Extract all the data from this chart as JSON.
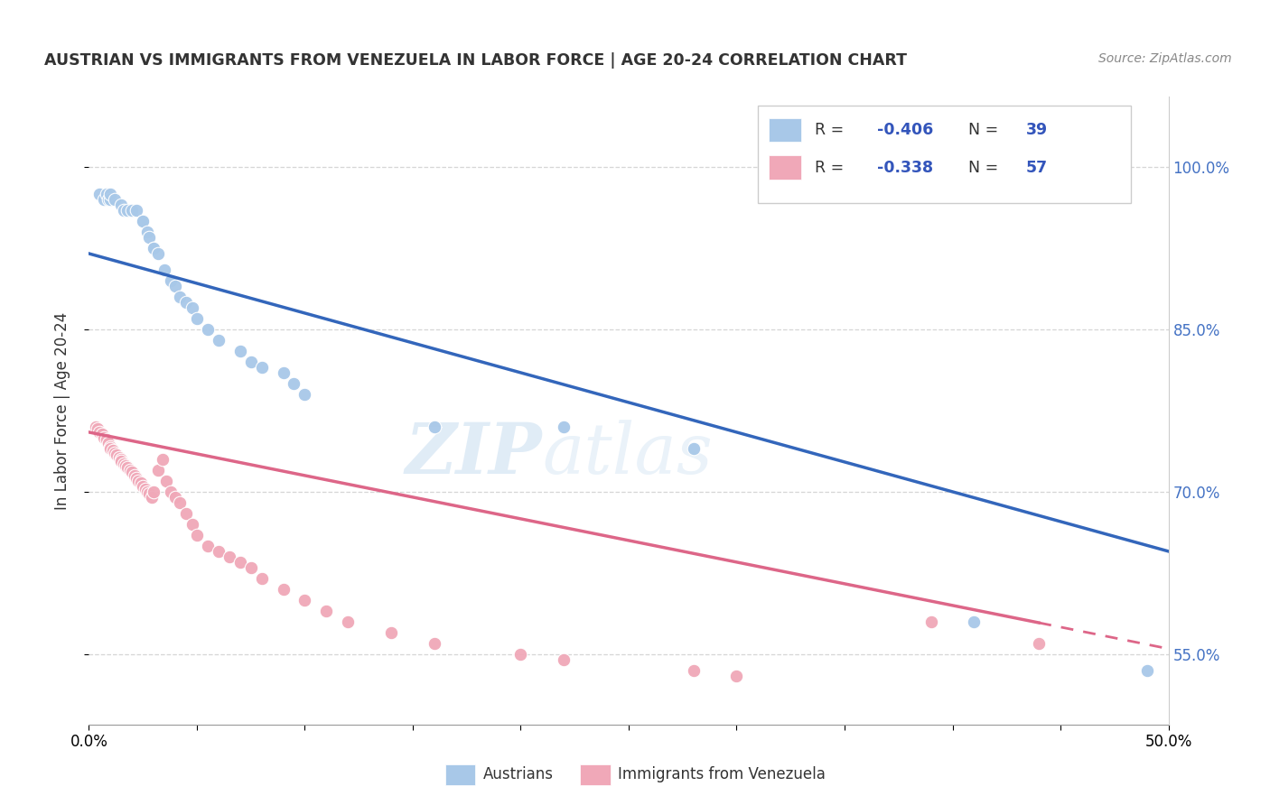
{
  "title": "AUSTRIAN VS IMMIGRANTS FROM VENEZUELA IN LABOR FORCE | AGE 20-24 CORRELATION CHART",
  "source": "Source: ZipAtlas.com",
  "ylabel": "In Labor Force | Age 20-24",
  "yticks": [
    0.55,
    0.7,
    0.85,
    1.0
  ],
  "xmin": 0.0,
  "xmax": 0.5,
  "ymin": 0.485,
  "ymax": 1.065,
  "legend_blue_r_val": "-0.406",
  "legend_blue_n_val": "39",
  "legend_pink_r_val": "-0.338",
  "legend_pink_n_val": "57",
  "blue_color": "#a8c8e8",
  "pink_color": "#f0a8b8",
  "blue_line_color": "#3366bb",
  "pink_line_color": "#dd6688",
  "watermark_text": "ZIP",
  "watermark_text2": "atlas",
  "blue_scatter_x": [
    0.005,
    0.007,
    0.008,
    0.009,
    0.01,
    0.01,
    0.012,
    0.015,
    0.016,
    0.018,
    0.02,
    0.022,
    0.025,
    0.025,
    0.027,
    0.028,
    0.03,
    0.03,
    0.032,
    0.035,
    0.038,
    0.04,
    0.042,
    0.045,
    0.048,
    0.05,
    0.055,
    0.06,
    0.07,
    0.075,
    0.08,
    0.09,
    0.095,
    0.1,
    0.16,
    0.22,
    0.28,
    0.41,
    0.49
  ],
  "blue_scatter_y": [
    0.975,
    0.97,
    0.975,
    0.97,
    0.97,
    0.975,
    0.97,
    0.965,
    0.96,
    0.96,
    0.96,
    0.96,
    0.95,
    0.95,
    0.94,
    0.935,
    0.925,
    0.925,
    0.92,
    0.905,
    0.895,
    0.89,
    0.88,
    0.875,
    0.87,
    0.86,
    0.85,
    0.84,
    0.83,
    0.82,
    0.815,
    0.81,
    0.8,
    0.79,
    0.76,
    0.76,
    0.74,
    0.58,
    0.535
  ],
  "pink_scatter_x": [
    0.003,
    0.004,
    0.005,
    0.006,
    0.007,
    0.008,
    0.009,
    0.01,
    0.01,
    0.011,
    0.012,
    0.013,
    0.014,
    0.015,
    0.015,
    0.016,
    0.017,
    0.018,
    0.019,
    0.02,
    0.021,
    0.022,
    0.023,
    0.024,
    0.025,
    0.026,
    0.027,
    0.028,
    0.029,
    0.03,
    0.032,
    0.034,
    0.036,
    0.038,
    0.04,
    0.042,
    0.045,
    0.048,
    0.05,
    0.055,
    0.06,
    0.065,
    0.07,
    0.075,
    0.08,
    0.09,
    0.1,
    0.11,
    0.12,
    0.14,
    0.16,
    0.2,
    0.22,
    0.28,
    0.3,
    0.39,
    0.44
  ],
  "pink_scatter_y": [
    0.76,
    0.758,
    0.755,
    0.753,
    0.75,
    0.748,
    0.745,
    0.742,
    0.74,
    0.738,
    0.736,
    0.734,
    0.732,
    0.73,
    0.728,
    0.726,
    0.724,
    0.722,
    0.72,
    0.718,
    0.715,
    0.712,
    0.71,
    0.708,
    0.705,
    0.702,
    0.7,
    0.698,
    0.695,
    0.7,
    0.72,
    0.73,
    0.71,
    0.7,
    0.695,
    0.69,
    0.68,
    0.67,
    0.66,
    0.65,
    0.645,
    0.64,
    0.635,
    0.63,
    0.62,
    0.61,
    0.6,
    0.59,
    0.58,
    0.57,
    0.56,
    0.55,
    0.545,
    0.535,
    0.53,
    0.58,
    0.56
  ],
  "blue_line_x0": 0.0,
  "blue_line_y0": 0.92,
  "blue_line_x1": 0.5,
  "blue_line_y1": 0.645,
  "pink_line_x0": 0.0,
  "pink_line_y0": 0.755,
  "pink_line_x1": 0.5,
  "pink_line_y1": 0.555
}
